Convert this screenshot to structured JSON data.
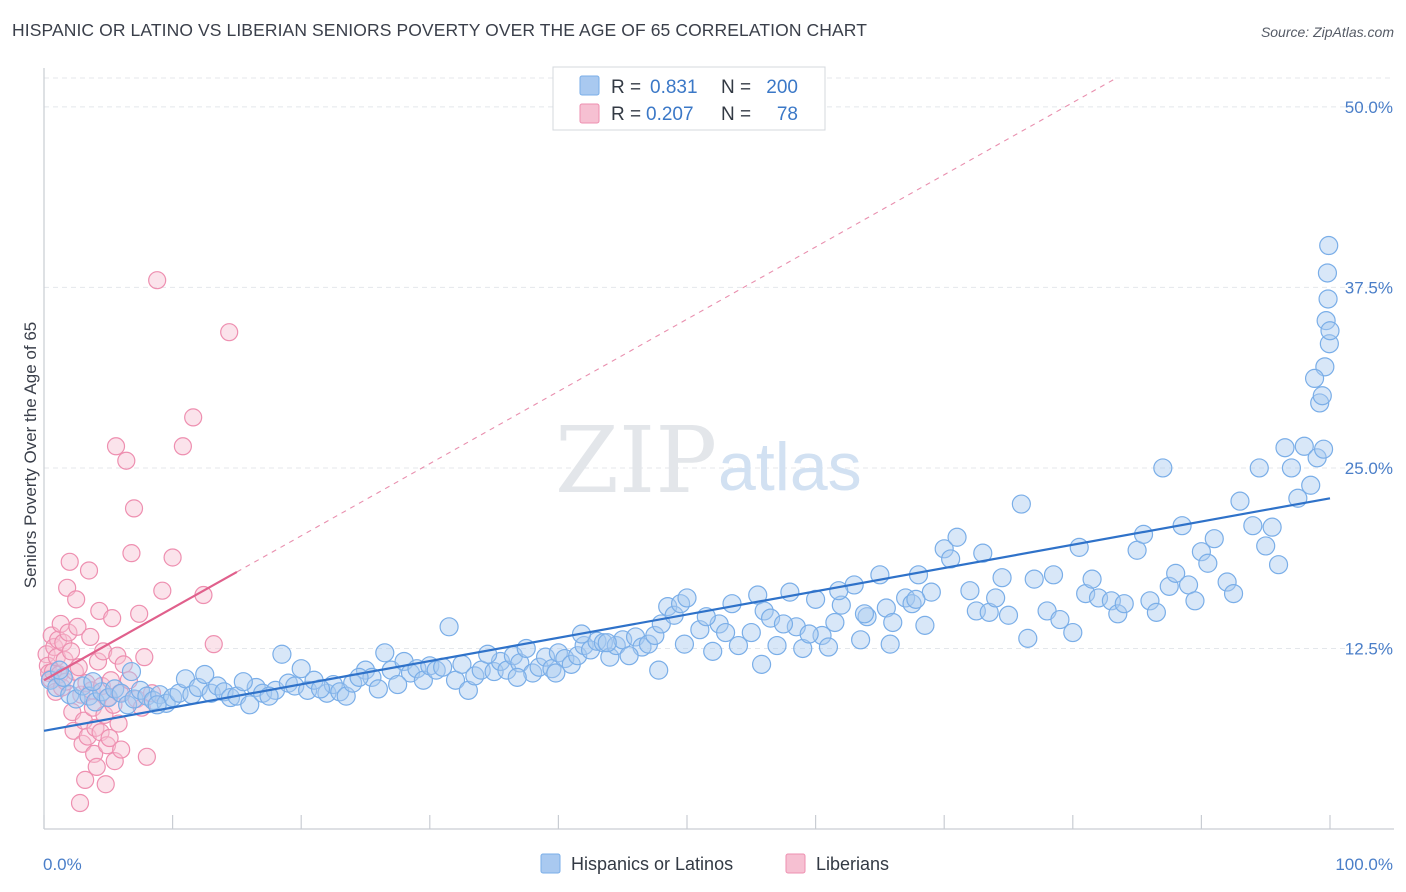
{
  "title": "HISPANIC OR LATINO VS LIBERIAN SENIORS POVERTY OVER THE AGE OF 65 CORRELATION CHART",
  "source": "Source: ZipAtlas.com",
  "watermark": {
    "zip": "ZIP",
    "atlas": "atlas"
  },
  "colors": {
    "blue": "#7aaee8",
    "blue_fill": "#a9c9f0",
    "blue_line": "#2f72c9",
    "pink": "#ee8fb0",
    "pink_fill": "#f6c0d2",
    "pink_line": "#e0608c",
    "tick_text": "#4a7ec8"
  },
  "legend": {
    "rows": [
      {
        "r_label": "R =",
        "r_value": "0.831",
        "n_label": "N =",
        "n_value": "200"
      },
      {
        "r_label": "R =",
        "r_value": "0.207",
        "n_label": "N =",
        "n_value": "78"
      }
    ]
  },
  "chart_data": {
    "type": "scatter",
    "title": "HISPANIC OR LATINO VS LIBERIAN SENIORS POVERTY OVER THE AGE OF 65 CORRELATION CHART",
    "xlabel": "",
    "ylabel": "Seniors Poverty Over the Age of 65",
    "xlim": [
      0,
      100
    ],
    "ylim": [
      0,
      52
    ],
    "x_tick_labels": [
      "0.0%",
      "100.0%"
    ],
    "y_ticks": [
      12.5,
      25.0,
      37.5,
      50.0
    ],
    "y_tick_labels": [
      "12.5%",
      "25.0%",
      "37.5%",
      "50.0%"
    ],
    "grid": true,
    "legend_position": "top-center",
    "series": [
      {
        "name": "Hispanics or Latinos",
        "color": "#7aaee8",
        "trend": {
          "x": [
            0,
            100
          ],
          "y": [
            6.8,
            22.9
          ]
        },
        "points": [
          [
            0.5,
            10.3
          ],
          [
            1.0,
            9.8
          ],
          [
            1.5,
            10.5
          ],
          [
            2.0,
            9.3
          ],
          [
            2.5,
            9.0
          ],
          [
            3.0,
            9.9
          ],
          [
            3.5,
            9.2
          ],
          [
            4.0,
            8.8
          ],
          [
            4.5,
            9.5
          ],
          [
            5.0,
            9.1
          ],
          [
            5.5,
            9.7
          ],
          [
            6.0,
            9.4
          ],
          [
            6.5,
            8.6
          ],
          [
            7.0,
            9.0
          ],
          [
            7.5,
            9.6
          ],
          [
            8.0,
            9.2
          ],
          [
            8.5,
            8.9
          ],
          [
            9.0,
            9.3
          ],
          [
            9.5,
            8.7
          ],
          [
            10.0,
            9.1
          ],
          [
            10.5,
            9.4
          ],
          [
            11.0,
            10.4
          ],
          [
            11.5,
            9.3
          ],
          [
            12.0,
            9.8
          ],
          [
            13.0,
            9.4
          ],
          [
            13.5,
            9.9
          ],
          [
            14.0,
            9.5
          ],
          [
            14.5,
            9.1
          ],
          [
            15.0,
            9.2
          ],
          [
            16.0,
            8.6
          ],
          [
            16.5,
            9.8
          ],
          [
            17.0,
            9.4
          ],
          [
            18.0,
            9.6
          ],
          [
            19.0,
            10.1
          ],
          [
            19.5,
            9.9
          ],
          [
            20.0,
            11.1
          ],
          [
            20.5,
            9.6
          ],
          [
            21.0,
            10.3
          ],
          [
            22.0,
            9.4
          ],
          [
            22.5,
            10.0
          ],
          [
            23.0,
            9.5
          ],
          [
            23.5,
            9.2
          ],
          [
            24.0,
            10.1
          ],
          [
            25.0,
            11.0
          ],
          [
            25.5,
            10.5
          ],
          [
            26.0,
            9.7
          ],
          [
            27.0,
            11.0
          ],
          [
            28.0,
            11.6
          ],
          [
            28.5,
            10.8
          ],
          [
            29.0,
            11.1
          ],
          [
            29.5,
            10.3
          ],
          [
            30.0,
            11.3
          ],
          [
            30.5,
            11.0
          ],
          [
            31.0,
            11.2
          ],
          [
            32.0,
            10.3
          ],
          [
            32.5,
            11.4
          ],
          [
            33.0,
            9.6
          ],
          [
            33.5,
            10.6
          ],
          [
            34.0,
            11.0
          ],
          [
            35.0,
            10.9
          ],
          [
            35.5,
            11.6
          ],
          [
            36.0,
            11.0
          ],
          [
            36.5,
            12.0
          ],
          [
            37.0,
            11.5
          ],
          [
            37.5,
            12.5
          ],
          [
            38.0,
            10.8
          ],
          [
            38.5,
            11.2
          ],
          [
            39.0,
            11.9
          ],
          [
            39.5,
            11.1
          ],
          [
            40.0,
            12.2
          ],
          [
            40.5,
            11.8
          ],
          [
            41.0,
            11.4
          ],
          [
            41.5,
            12.0
          ],
          [
            42.0,
            12.7
          ],
          [
            42.5,
            12.4
          ],
          [
            43.0,
            13.0
          ],
          [
            43.5,
            12.9
          ],
          [
            44.0,
            11.9
          ],
          [
            44.5,
            12.7
          ],
          [
            45.0,
            13.1
          ],
          [
            46.0,
            13.3
          ],
          [
            46.5,
            12.6
          ],
          [
            47.0,
            12.8
          ],
          [
            47.5,
            13.4
          ],
          [
            48.0,
            14.2
          ],
          [
            48.5,
            15.4
          ],
          [
            49.0,
            14.8
          ],
          [
            49.5,
            15.6
          ],
          [
            50.0,
            16.0
          ],
          [
            51.0,
            13.8
          ],
          [
            52.0,
            12.3
          ],
          [
            52.5,
            14.2
          ],
          [
            53.0,
            13.6
          ],
          [
            54.0,
            12.7
          ],
          [
            55.0,
            13.6
          ],
          [
            55.5,
            16.2
          ],
          [
            56.0,
            15.1
          ],
          [
            56.5,
            14.6
          ],
          [
            57.0,
            12.7
          ],
          [
            58.0,
            16.4
          ],
          [
            58.5,
            14.0
          ],
          [
            59.0,
            12.5
          ],
          [
            60.0,
            15.9
          ],
          [
            60.5,
            13.4
          ],
          [
            61.0,
            12.6
          ],
          [
            61.5,
            14.3
          ],
          [
            62.0,
            15.5
          ],
          [
            63.0,
            16.9
          ],
          [
            63.5,
            13.1
          ],
          [
            64.0,
            14.7
          ],
          [
            65.0,
            17.6
          ],
          [
            65.5,
            15.3
          ],
          [
            66.0,
            14.3
          ],
          [
            67.0,
            16.0
          ],
          [
            67.5,
            15.6
          ],
          [
            68.0,
            17.6
          ],
          [
            68.5,
            14.1
          ],
          [
            69.0,
            16.4
          ],
          [
            70.0,
            19.4
          ],
          [
            70.5,
            18.7
          ],
          [
            71.0,
            20.2
          ],
          [
            72.0,
            16.5
          ],
          [
            72.5,
            15.1
          ],
          [
            73.0,
            19.1
          ],
          [
            73.5,
            15.0
          ],
          [
            74.0,
            16.0
          ],
          [
            74.5,
            17.4
          ],
          [
            75.0,
            14.8
          ],
          [
            76.0,
            22.5
          ],
          [
            76.5,
            13.2
          ],
          [
            77.0,
            17.3
          ],
          [
            78.0,
            15.1
          ],
          [
            78.5,
            17.6
          ],
          [
            79.0,
            14.5
          ],
          [
            80.0,
            13.6
          ],
          [
            80.5,
            19.5
          ],
          [
            81.0,
            16.3
          ],
          [
            81.5,
            17.3
          ],
          [
            82.0,
            16.0
          ],
          [
            83.0,
            15.8
          ],
          [
            83.5,
            14.9
          ],
          [
            84.0,
            15.6
          ],
          [
            85.0,
            19.3
          ],
          [
            85.5,
            20.4
          ],
          [
            86.0,
            15.8
          ],
          [
            86.5,
            15.0
          ],
          [
            87.0,
            25.0
          ],
          [
            87.5,
            16.8
          ],
          [
            88.0,
            17.7
          ],
          [
            88.5,
            21.0
          ],
          [
            89.0,
            16.9
          ],
          [
            89.5,
            15.8
          ],
          [
            90.0,
            19.2
          ],
          [
            90.5,
            18.4
          ],
          [
            91.0,
            20.1
          ],
          [
            92.0,
            17.1
          ],
          [
            92.5,
            16.3
          ],
          [
            93.0,
            22.7
          ],
          [
            94.0,
            21.0
          ],
          [
            94.5,
            25.0
          ],
          [
            95.0,
            19.6
          ],
          [
            95.5,
            20.9
          ],
          [
            96.0,
            18.3
          ],
          [
            96.5,
            26.4
          ],
          [
            97.0,
            25.0
          ],
          [
            97.5,
            22.9
          ],
          [
            98.0,
            26.5
          ],
          [
            98.5,
            23.8
          ],
          [
            99.0,
            25.7
          ],
          [
            99.2,
            29.5
          ],
          [
            99.4,
            30.0
          ],
          [
            99.5,
            26.3
          ],
          [
            99.6,
            32.0
          ],
          [
            99.7,
            35.2
          ],
          [
            99.8,
            38.5
          ],
          [
            99.85,
            36.7
          ],
          [
            99.9,
            40.4
          ],
          [
            99.95,
            33.6
          ],
          [
            100.0,
            34.5
          ],
          [
            98.8,
            31.2
          ],
          [
            1.2,
            11.0
          ],
          [
            3.8,
            10.2
          ],
          [
            6.8,
            10.9
          ],
          [
            8.8,
            8.6
          ],
          [
            12.5,
            10.7
          ],
          [
            15.5,
            10.2
          ],
          [
            17.5,
            9.2
          ],
          [
            18.5,
            12.1
          ],
          [
            21.5,
            9.7
          ],
          [
            24.5,
            10.5
          ],
          [
            26.5,
            12.2
          ],
          [
            27.5,
            10.0
          ],
          [
            31.5,
            14.0
          ],
          [
            34.5,
            12.1
          ],
          [
            36.8,
            10.5
          ],
          [
            39.8,
            10.8
          ],
          [
            41.8,
            13.5
          ],
          [
            43.8,
            12.9
          ],
          [
            45.5,
            12.0
          ],
          [
            47.8,
            11.0
          ],
          [
            49.8,
            12.8
          ],
          [
            51.5,
            14.7
          ],
          [
            53.5,
            15.6
          ],
          [
            55.8,
            11.4
          ],
          [
            57.5,
            14.2
          ],
          [
            59.5,
            13.5
          ],
          [
            61.8,
            16.5
          ],
          [
            63.8,
            14.9
          ],
          [
            65.8,
            12.8
          ],
          [
            67.8,
            15.9
          ]
        ]
      },
      {
        "name": "Liberians",
        "color": "#ee8fb0",
        "trend": {
          "x": [
            0,
            15
          ],
          "y": [
            10.3,
            17.8
          ]
        },
        "points": [
          [
            0.2,
            12.1
          ],
          [
            0.3,
            11.3
          ],
          [
            0.4,
            10.8
          ],
          [
            0.5,
            10.4
          ],
          [
            0.6,
            13.4
          ],
          [
            0.7,
            10.9
          ],
          [
            0.8,
            12.6
          ],
          [
            0.9,
            9.5
          ],
          [
            1.0,
            11.9
          ],
          [
            1.1,
            13.1
          ],
          [
            1.2,
            10.7
          ],
          [
            1.3,
            14.2
          ],
          [
            1.4,
            9.8
          ],
          [
            1.5,
            12.9
          ],
          [
            1.6,
            11.7
          ],
          [
            1.7,
            10.2
          ],
          [
            1.8,
            16.7
          ],
          [
            1.9,
            13.6
          ],
          [
            2.0,
            18.5
          ],
          [
            2.1,
            12.3
          ],
          [
            2.2,
            8.1
          ],
          [
            2.3,
            6.8
          ],
          [
            2.4,
            10.9
          ],
          [
            2.5,
            15.9
          ],
          [
            2.6,
            14.0
          ],
          [
            2.7,
            11.2
          ],
          [
            2.8,
            1.8
          ],
          [
            2.9,
            9.3
          ],
          [
            3.0,
            5.9
          ],
          [
            3.1,
            7.5
          ],
          [
            3.2,
            3.4
          ],
          [
            3.3,
            10.1
          ],
          [
            3.4,
            6.4
          ],
          [
            3.5,
            17.9
          ],
          [
            3.6,
            13.3
          ],
          [
            3.7,
            9.6
          ],
          [
            3.8,
            8.4
          ],
          [
            3.9,
            5.2
          ],
          [
            4.0,
            7.0
          ],
          [
            4.1,
            4.3
          ],
          [
            4.2,
            11.6
          ],
          [
            4.3,
            15.1
          ],
          [
            4.4,
            6.7
          ],
          [
            4.5,
            9.9
          ],
          [
            4.6,
            12.3
          ],
          [
            4.7,
            7.9
          ],
          [
            4.8,
            3.1
          ],
          [
            4.9,
            5.8
          ],
          [
            5.0,
            9.1
          ],
          [
            5.1,
            6.3
          ],
          [
            5.2,
            10.3
          ],
          [
            5.3,
            14.6
          ],
          [
            5.4,
            8.6
          ],
          [
            5.5,
            4.7
          ],
          [
            5.6,
            26.5
          ],
          [
            5.7,
            12.0
          ],
          [
            5.8,
            7.3
          ],
          [
            5.9,
            9.4
          ],
          [
            6.0,
            5.5
          ],
          [
            6.2,
            11.4
          ],
          [
            6.4,
            25.5
          ],
          [
            6.6,
            10.3
          ],
          [
            6.8,
            19.1
          ],
          [
            7.0,
            22.2
          ],
          [
            7.2,
            9.0
          ],
          [
            7.4,
            14.9
          ],
          [
            7.6,
            8.4
          ],
          [
            7.8,
            11.9
          ],
          [
            8.0,
            5.0
          ],
          [
            8.4,
            9.4
          ],
          [
            8.8,
            38.0
          ],
          [
            9.2,
            16.5
          ],
          [
            10.0,
            18.8
          ],
          [
            10.8,
            26.5
          ],
          [
            11.6,
            28.5
          ],
          [
            12.4,
            16.2
          ],
          [
            13.2,
            12.8
          ],
          [
            14.4,
            34.4
          ]
        ]
      }
    ]
  },
  "bottom_legend": {
    "items": [
      {
        "label": "Hispanics or Latinos"
      },
      {
        "label": "Liberians"
      }
    ]
  }
}
